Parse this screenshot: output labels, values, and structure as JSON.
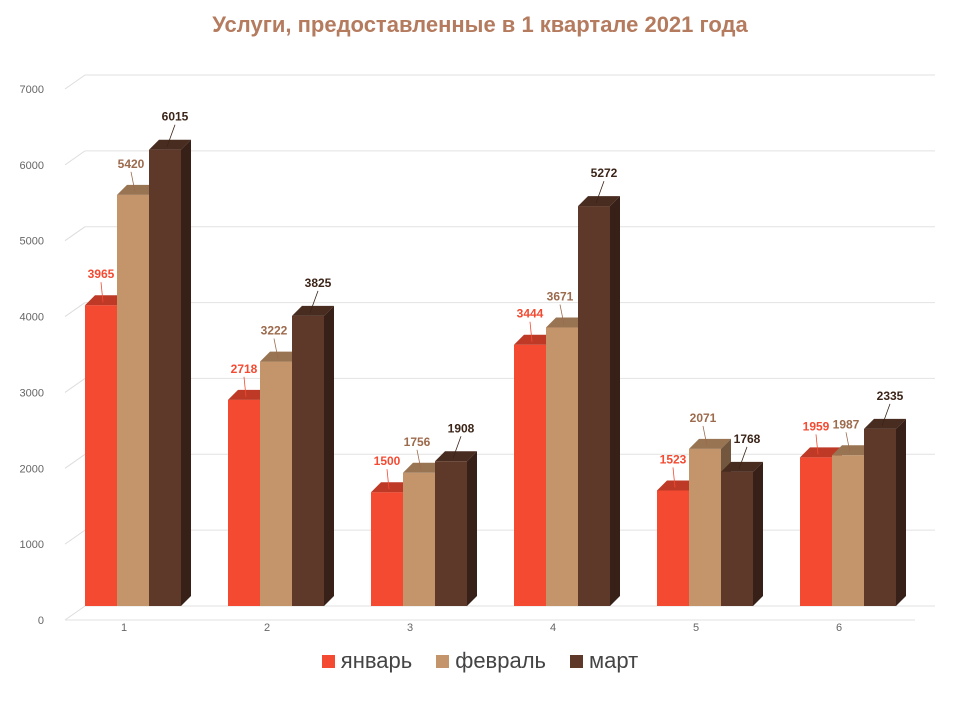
{
  "chart_data": {
    "type": "bar",
    "title": "Услуги, предоставленные в 1 квартале 2021 года",
    "categories": [
      "1",
      "2",
      "3",
      "4",
      "5",
      "6"
    ],
    "series": [
      {
        "name": "январь",
        "color": "#f44a32",
        "label_color": "#f44a32",
        "values": [
          3965,
          2718,
          1500,
          3444,
          1523,
          1959
        ]
      },
      {
        "name": "февраль",
        "color": "#c4956a",
        "label_color": "#9c6a4c",
        "values": [
          5420,
          3222,
          1756,
          3671,
          2071,
          1987
        ]
      },
      {
        "name": "март",
        "color": "#5e3829",
        "label_color": "#3b2418",
        "values": [
          6015,
          3825,
          1908,
          5272,
          1768,
          2335
        ]
      }
    ],
    "ylim": [
      0,
      7000
    ],
    "yticks": [
      0,
      1000,
      2000,
      3000,
      4000,
      5000,
      6000,
      7000
    ],
    "grid": true,
    "legend_position": "bottom",
    "three_d": true
  }
}
